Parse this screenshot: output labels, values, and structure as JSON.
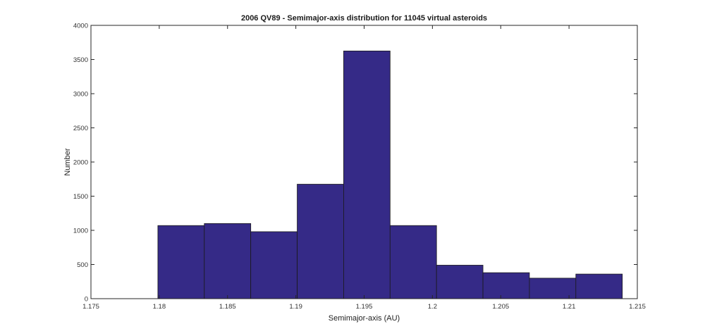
{
  "chart_data": {
    "type": "bar",
    "title": "2006 QV89 - Semimajor-axis distribution for 11045 virtual asteroids",
    "xlabel": "Semimajor-axis (AU)",
    "ylabel": "Number",
    "xlim": [
      1.175,
      1.215
    ],
    "ylim": [
      0,
      4000
    ],
    "x_ticks": [
      1.175,
      1.18,
      1.185,
      1.19,
      1.195,
      1.2,
      1.205,
      1.21,
      1.215
    ],
    "x_tick_labels": [
      "1.175",
      "1.18",
      "1.185",
      "1.19",
      "1.195",
      "1.2",
      "1.205",
      "1.21",
      "1.215"
    ],
    "y_ticks": [
      0,
      500,
      1000,
      1500,
      2000,
      2500,
      3000,
      3500,
      4000
    ],
    "y_tick_labels": [
      "0",
      "500",
      "1000",
      "1500",
      "2000",
      "2500",
      "3000",
      "3500",
      "4000"
    ],
    "bins": [
      {
        "x0": 1.1799,
        "x1": 1.1833,
        "value": 1070
      },
      {
        "x0": 1.1833,
        "x1": 1.1867,
        "value": 1100
      },
      {
        "x0": 1.1867,
        "x1": 1.1901,
        "value": 980
      },
      {
        "x0": 1.1901,
        "x1": 1.1935,
        "value": 1675
      },
      {
        "x0": 1.1935,
        "x1": 1.1969,
        "value": 3625
      },
      {
        "x0": 1.1969,
        "x1": 1.2003,
        "value": 1070
      },
      {
        "x0": 1.2003,
        "x1": 1.2037,
        "value": 490
      },
      {
        "x0": 1.2037,
        "x1": 1.2071,
        "value": 380
      },
      {
        "x0": 1.2071,
        "x1": 1.2105,
        "value": 300
      },
      {
        "x0": 1.2105,
        "x1": 1.2139,
        "value": 360
      }
    ],
    "bar_color": "#352a87",
    "bar_edge_color": "#1a1a1a",
    "grid": false,
    "box": true
  }
}
